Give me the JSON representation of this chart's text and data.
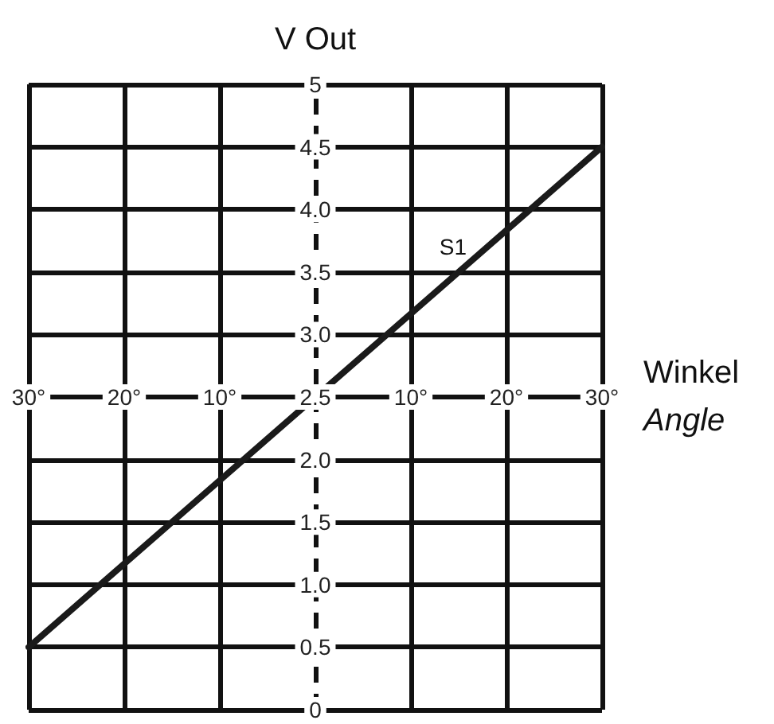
{
  "chart_data": {
    "type": "line",
    "ylabel": "V Out",
    "xlabel": "Winkel\nAngle",
    "x": [
      -30,
      30
    ],
    "series": [
      {
        "name": "S1",
        "color": "#1a1a1a",
        "values": [
          0.5,
          4.5
        ]
      }
    ],
    "xlim": [
      -30,
      30
    ],
    "xticks": [
      {
        "value": -30,
        "label": "30°"
      },
      {
        "value": -20,
        "label": "20°"
      },
      {
        "value": -10,
        "label": "10°"
      },
      {
        "value": 10,
        "label": "10°"
      },
      {
        "value": 20,
        "label": "20°"
      },
      {
        "value": 30,
        "label": "30°"
      }
    ],
    "ylim": [
      0,
      5
    ],
    "yticks": [
      0,
      0.5,
      {
        "value": 1,
        "label": "1.0"
      },
      1.5,
      {
        "value": 2,
        "label": "2.0"
      },
      2.5,
      {
        "value": 3,
        "label": "3.0"
      },
      3.5,
      {
        "value": 4,
        "label": "4.0"
      },
      4.5,
      5
    ],
    "ref_lines": [
      {
        "axis": "x",
        "value": 0,
        "color": "#111111",
        "line_style": "dashed"
      }
    ],
    "grid": true,
    "marker": "none",
    "line_style": "solid"
  }
}
